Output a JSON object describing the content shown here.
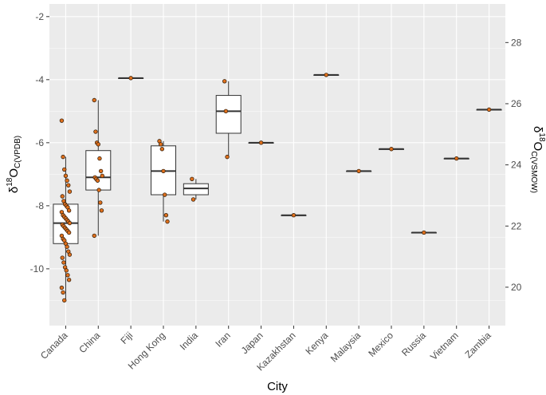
{
  "chart_data": {
    "type": "boxplot",
    "xlabel": "City",
    "ylabel": {
      "delta": "δ",
      "sup": "18",
      "main": "O",
      "sub": "C(VPDB)"
    },
    "y2label": {
      "delta": "δ",
      "sup": "18",
      "main": "O",
      "sub": "C(VSMOW)"
    },
    "ylim": [
      -11.8,
      -1.6
    ],
    "y_ticks": [
      -2,
      -4,
      -6,
      -8,
      -10
    ],
    "y_tick_labels": [
      "-2",
      "-4",
      "-6",
      "-8",
      "-10"
    ],
    "y2_ticks": [
      28,
      26,
      24,
      22,
      20
    ],
    "y2_tick_labels": [
      "28",
      "26",
      "24",
      "22",
      "20"
    ],
    "y2_conversion": {
      "slope": 1.03091,
      "intercept": 30.91
    },
    "categories": [
      "Canada",
      "China",
      "Fiji",
      "Hong Kong",
      "India",
      "Iran",
      "Japan",
      "Kazakhstan",
      "Kenya",
      "Malaysia",
      "Mexico",
      "Russia",
      "Vietnam",
      "Zambia"
    ],
    "boxes": [
      {
        "city": "Canada",
        "q1": -9.2,
        "median": -8.55,
        "q3": -7.95,
        "whisker_low": -11.0,
        "whisker_high": -6.45
      },
      {
        "city": "China",
        "q1": -7.5,
        "median": -7.1,
        "q3": -6.25,
        "whisker_low": -8.95,
        "whisker_high": -4.65
      },
      {
        "city": "Fiji",
        "q1": -3.95,
        "median": -3.95,
        "q3": -3.95,
        "whisker_low": -3.95,
        "whisker_high": -3.95
      },
      {
        "city": "Hong Kong",
        "q1": -7.65,
        "median": -6.9,
        "q3": -6.1,
        "whisker_low": -8.5,
        "whisker_high": -5.95
      },
      {
        "city": "India",
        "q1": -7.65,
        "median": -7.45,
        "q3": -7.3,
        "whisker_low": -7.8,
        "whisker_high": -7.15
      },
      {
        "city": "Iran",
        "q1": -5.7,
        "median": -5.0,
        "q3": -4.5,
        "whisker_low": -6.45,
        "whisker_high": -4.05
      },
      {
        "city": "Japan",
        "q1": -6.0,
        "median": -6.0,
        "q3": -6.0,
        "whisker_low": -6.0,
        "whisker_high": -6.0
      },
      {
        "city": "Kazakhstan",
        "q1": -8.3,
        "median": -8.3,
        "q3": -8.3,
        "whisker_low": -8.3,
        "whisker_high": -8.3
      },
      {
        "city": "Kenya",
        "q1": -3.85,
        "median": -3.85,
        "q3": -3.85,
        "whisker_low": -3.85,
        "whisker_high": -3.85
      },
      {
        "city": "Malaysia",
        "q1": -6.9,
        "median": -6.9,
        "q3": -6.9,
        "whisker_low": -6.9,
        "whisker_high": -6.9
      },
      {
        "city": "Mexico",
        "q1": -6.2,
        "median": -6.2,
        "q3": -6.2,
        "whisker_low": -6.2,
        "whisker_high": -6.2
      },
      {
        "city": "Russia",
        "q1": -8.85,
        "median": -8.85,
        "q3": -8.85,
        "whisker_low": -8.85,
        "whisker_high": -8.85
      },
      {
        "city": "Vietnam",
        "q1": -6.5,
        "median": -6.5,
        "q3": -6.5,
        "whisker_low": -6.5,
        "whisker_high": -6.5
      },
      {
        "city": "Zambia",
        "q1": -4.95,
        "median": -4.95,
        "q3": -4.95,
        "whisker_low": -4.95,
        "whisker_high": -4.95
      }
    ],
    "points": [
      {
        "city": "Canada",
        "values": [
          -5.3,
          -6.45,
          -6.85,
          -7.05,
          -7.2,
          -7.35,
          -7.55,
          -7.7,
          -7.85,
          -7.95,
          -8.0,
          -8.05,
          -8.15,
          -8.2,
          -8.3,
          -8.35,
          -8.4,
          -8.45,
          -8.5,
          -8.55,
          -8.6,
          -8.65,
          -8.7,
          -8.75,
          -8.8,
          -8.85,
          -8.95,
          -9.05,
          -9.1,
          -9.2,
          -9.3,
          -9.45,
          -9.55,
          -9.65,
          -9.8,
          -9.95,
          -10.05,
          -10.2,
          -10.35,
          -10.6,
          -10.75,
          -11.0
        ]
      },
      {
        "city": "China",
        "values": [
          -4.65,
          -5.65,
          -6.0,
          -6.05,
          -6.5,
          -6.9,
          -7.05,
          -7.1,
          -7.15,
          -7.2,
          -7.5,
          -7.9,
          -8.15,
          -8.95
        ]
      },
      {
        "city": "Fiji",
        "values": [
          -3.95
        ]
      },
      {
        "city": "Hong Kong",
        "values": [
          -5.95,
          -6.05,
          -6.2,
          -6.9,
          -7.65,
          -8.3,
          -8.5
        ]
      },
      {
        "city": "India",
        "values": [
          -7.15,
          -7.8
        ]
      },
      {
        "city": "Iran",
        "values": [
          -4.05,
          -5.0,
          -6.45
        ]
      },
      {
        "city": "Japan",
        "values": [
          -6.0
        ]
      },
      {
        "city": "Kazakhstan",
        "values": [
          -8.3
        ]
      },
      {
        "city": "Kenya",
        "values": [
          -3.85
        ]
      },
      {
        "city": "Malaysia",
        "values": [
          -6.9
        ]
      },
      {
        "city": "Mexico",
        "values": [
          -6.2
        ]
      },
      {
        "city": "Russia",
        "values": [
          -8.85
        ]
      },
      {
        "city": "Vietnam",
        "values": [
          -6.5
        ]
      },
      {
        "city": "Zambia",
        "values": [
          -4.95
        ]
      }
    ],
    "colors": {
      "panel": "#ebebeb",
      "grid_major": "#ffffff",
      "box_fill": "#ffffff",
      "box_line": "#333333",
      "point_fill": "#e0701c",
      "point_edge": "#3a2410",
      "tick_text": "#4d4d4d",
      "tick_line": "#333333"
    }
  }
}
